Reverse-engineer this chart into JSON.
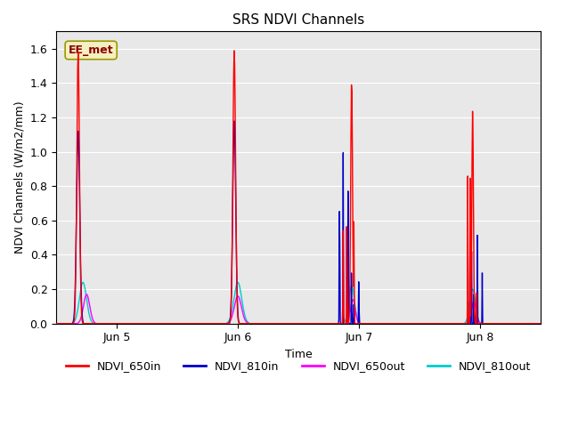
{
  "title": "SRS NDVI Channels",
  "xlabel": "Time",
  "ylabel": "NDVI Channels (W/m2/mm)",
  "ylim": [
    0.0,
    1.7
  ],
  "yticks": [
    0.0,
    0.2,
    0.4,
    0.6,
    0.8,
    1.0,
    1.2,
    1.4,
    1.6
  ],
  "xtick_labels": [
    "Jun 5",
    "Jun 6",
    "Jun 7",
    "Jun 8"
  ],
  "xtick_positions": [
    0.5,
    1.5,
    2.5,
    3.5
  ],
  "xlim": [
    0.0,
    4.0
  ],
  "background_color": "#e8e8e8",
  "annotation_text": "EE_met",
  "annotation_box_facecolor": "#f5f0c0",
  "annotation_box_edgecolor": "#999900",
  "annotation_text_color": "#8B0000",
  "legend_labels": [
    "NDVI_650in",
    "NDVI_810in",
    "NDVI_650out",
    "NDVI_810out"
  ],
  "line_colors": {
    "NDVI_650in": "#ff0000",
    "NDVI_810in": "#0000cc",
    "NDVI_650out": "#ff00ff",
    "NDVI_810out": "#00cccc"
  },
  "line_width": 1.0,
  "title_fontsize": 11,
  "axis_label_fontsize": 9,
  "tick_fontsize": 9,
  "legend_fontsize": 9
}
